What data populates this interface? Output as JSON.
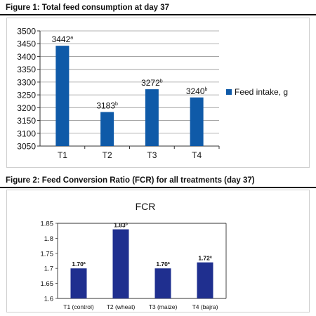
{
  "figures": {
    "fig1": {
      "caption": "Figure 1: Total feed consumption at day 37"
    },
    "fig2": {
      "caption": "Figure 2: Feed Conversion Ratio (FCR) for all treatments (day 37)"
    }
  },
  "chart_data": [
    {
      "type": "bar",
      "title": "",
      "categories": [
        "T1",
        "T2",
        "T3",
        "T4"
      ],
      "series": [
        {
          "name": "Feed intake, g",
          "values": [
            3442,
            3183,
            3272,
            3240
          ],
          "color": "#0f5aa8"
        }
      ],
      "data_labels": [
        "3442",
        "3183",
        "3272",
        "3240"
      ],
      "data_label_superscripts": [
        "a",
        "b",
        "b",
        "b"
      ],
      "ylim": [
        3050,
        3500
      ],
      "yticks": [
        "3500",
        "3450",
        "3400",
        "3350",
        "3300",
        "3250",
        "3200",
        "3150",
        "3100",
        "3050"
      ],
      "ytick_values": [
        3500,
        3450,
        3400,
        3350,
        3300,
        3250,
        3200,
        3150,
        3100,
        3050
      ],
      "grid": true,
      "legend": "right",
      "xlabel": "",
      "ylabel": ""
    },
    {
      "type": "bar",
      "title": "FCR",
      "categories": [
        "T1 (control)",
        "T2 (wheat)",
        "T3 (maize)",
        "T4 (bajra)"
      ],
      "series": [
        {
          "values": [
            1.7,
            1.83,
            1.7,
            1.72
          ],
          "color": "#1f2f8f"
        }
      ],
      "data_labels": [
        "1.70",
        "1.83",
        "1.70",
        "1.72"
      ],
      "data_label_superscripts": [
        "a",
        "b",
        "a",
        "a"
      ],
      "ylim": [
        1.6,
        1.85
      ],
      "yticks": [
        "1.85",
        "1.8",
        "1.75",
        "1.7",
        "1.65",
        "1.6"
      ],
      "ytick_values": [
        1.85,
        1.8,
        1.75,
        1.7,
        1.65,
        1.6
      ],
      "grid": false,
      "legend": "none",
      "xlabel": "",
      "ylabel": ""
    }
  ]
}
